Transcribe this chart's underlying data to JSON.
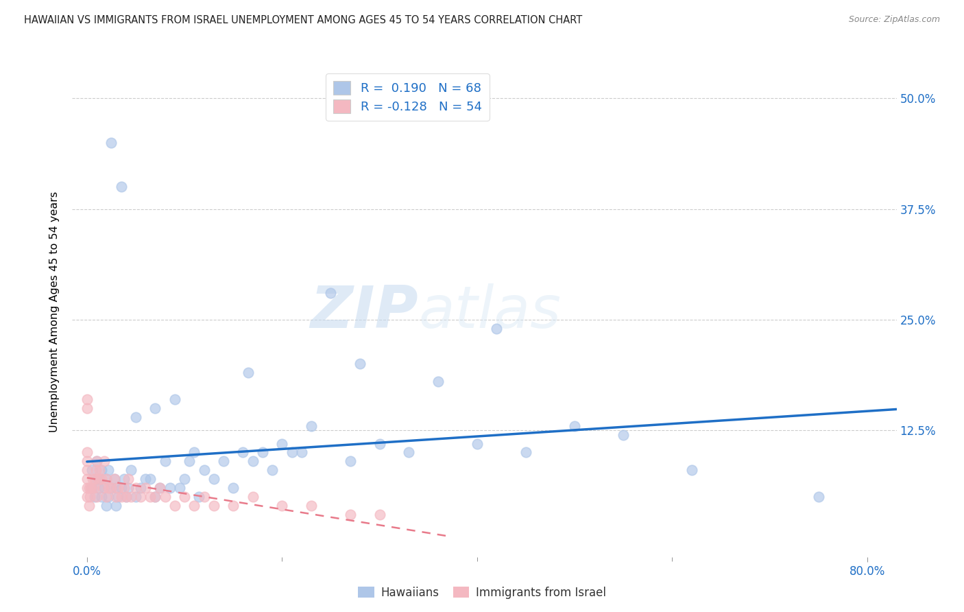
{
  "title": "HAWAIIAN VS IMMIGRANTS FROM ISRAEL UNEMPLOYMENT AMONG AGES 45 TO 54 YEARS CORRELATION CHART",
  "source": "Source: ZipAtlas.com",
  "xlabel_ticks": [
    "0.0%",
    "80.0%"
  ],
  "xlabel_tick_vals": [
    0.0,
    0.8
  ],
  "ylabel_ticks": [
    "12.5%",
    "25.0%",
    "37.5%",
    "50.0%"
  ],
  "ylabel_tick_vals": [
    0.125,
    0.25,
    0.375,
    0.5
  ],
  "ylabel": "Unemployment Among Ages 45 to 54 years",
  "xlim": [
    -0.015,
    0.83
  ],
  "ylim": [
    -0.018,
    0.535
  ],
  "hawaiians_color": "#aec6e8",
  "israel_color": "#f4b8c1",
  "hawaiians_line_color": "#1f6fc6",
  "israel_line_color": "#e87a8a",
  "watermark_zip": "ZIP",
  "watermark_atlas": "atlas",
  "grid_color": "#cccccc",
  "background_color": "#ffffff",
  "R_hawaiians": 0.19,
  "N_hawaiians": 68,
  "R_israel": -0.128,
  "N_israel": 54,
  "hawaiians_x": [
    0.005,
    0.005,
    0.008,
    0.01,
    0.01,
    0.012,
    0.013,
    0.015,
    0.015,
    0.018,
    0.02,
    0.02,
    0.022,
    0.022,
    0.025,
    0.025,
    0.028,
    0.03,
    0.03,
    0.032,
    0.035,
    0.035,
    0.038,
    0.04,
    0.042,
    0.045,
    0.05,
    0.05,
    0.055,
    0.06,
    0.065,
    0.07,
    0.07,
    0.075,
    0.08,
    0.085,
    0.09,
    0.095,
    0.1,
    0.105,
    0.11,
    0.115,
    0.12,
    0.13,
    0.14,
    0.15,
    0.16,
    0.165,
    0.17,
    0.18,
    0.19,
    0.2,
    0.21,
    0.22,
    0.23,
    0.25,
    0.27,
    0.28,
    0.3,
    0.33,
    0.36,
    0.4,
    0.42,
    0.45,
    0.5,
    0.55,
    0.62,
    0.75
  ],
  "hawaiians_y": [
    0.06,
    0.08,
    0.05,
    0.07,
    0.09,
    0.06,
    0.07,
    0.05,
    0.08,
    0.06,
    0.04,
    0.07,
    0.05,
    0.08,
    0.06,
    0.45,
    0.07,
    0.04,
    0.06,
    0.05,
    0.06,
    0.4,
    0.07,
    0.05,
    0.06,
    0.08,
    0.05,
    0.14,
    0.06,
    0.07,
    0.07,
    0.05,
    0.15,
    0.06,
    0.09,
    0.06,
    0.16,
    0.06,
    0.07,
    0.09,
    0.1,
    0.05,
    0.08,
    0.07,
    0.09,
    0.06,
    0.1,
    0.19,
    0.09,
    0.1,
    0.08,
    0.11,
    0.1,
    0.1,
    0.13,
    0.28,
    0.09,
    0.2,
    0.11,
    0.1,
    0.18,
    0.11,
    0.24,
    0.1,
    0.13,
    0.12,
    0.08,
    0.05
  ],
  "israel_x": [
    0.0,
    0.0,
    0.0,
    0.0,
    0.0,
    0.0,
    0.0,
    0.0,
    0.002,
    0.002,
    0.003,
    0.004,
    0.005,
    0.006,
    0.007,
    0.008,
    0.009,
    0.01,
    0.01,
    0.012,
    0.013,
    0.015,
    0.016,
    0.018,
    0.02,
    0.02,
    0.022,
    0.025,
    0.028,
    0.03,
    0.032,
    0.035,
    0.038,
    0.04,
    0.042,
    0.045,
    0.05,
    0.055,
    0.06,
    0.065,
    0.07,
    0.075,
    0.08,
    0.09,
    0.1,
    0.11,
    0.12,
    0.13,
    0.15,
    0.17,
    0.2,
    0.23,
    0.27,
    0.3
  ],
  "israel_y": [
    0.05,
    0.06,
    0.07,
    0.08,
    0.09,
    0.1,
    0.15,
    0.16,
    0.04,
    0.06,
    0.05,
    0.06,
    0.06,
    0.07,
    0.06,
    0.07,
    0.08,
    0.05,
    0.09,
    0.07,
    0.08,
    0.07,
    0.06,
    0.09,
    0.05,
    0.07,
    0.06,
    0.06,
    0.07,
    0.05,
    0.06,
    0.05,
    0.06,
    0.05,
    0.07,
    0.05,
    0.06,
    0.05,
    0.06,
    0.05,
    0.05,
    0.06,
    0.05,
    0.04,
    0.05,
    0.04,
    0.05,
    0.04,
    0.04,
    0.05,
    0.04,
    0.04,
    0.03,
    0.03
  ]
}
